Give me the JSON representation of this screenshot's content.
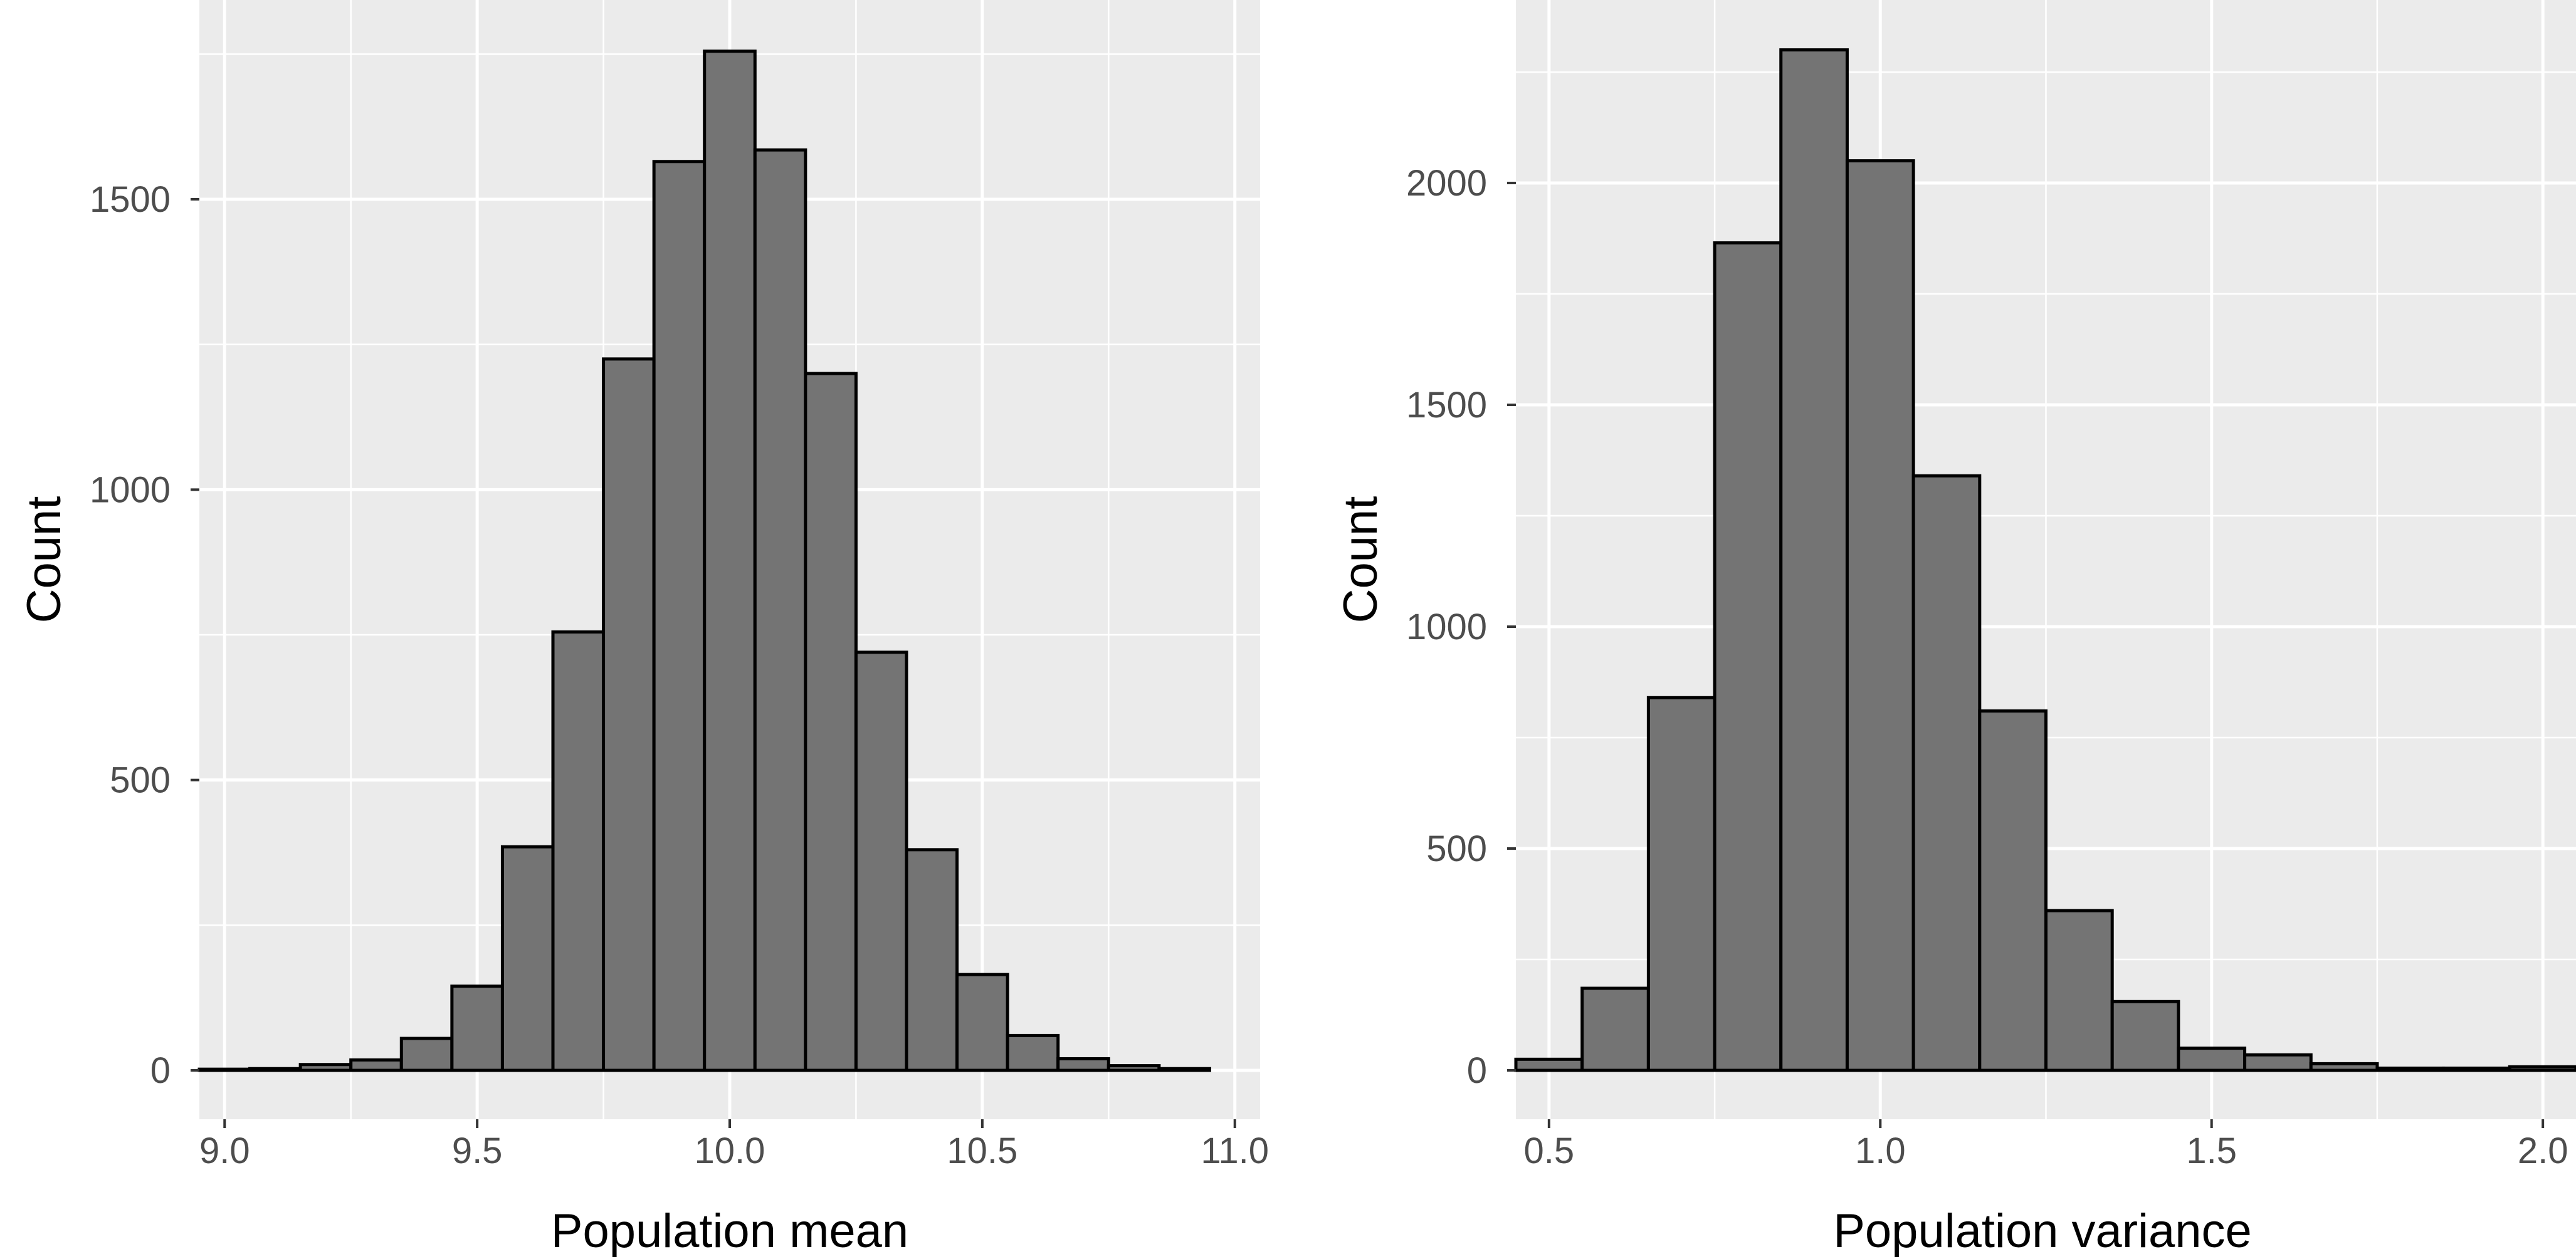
{
  "chart_data": [
    {
      "type": "bar",
      "title": "",
      "xlabel": "Population mean",
      "ylabel": "Count",
      "xlim": [
        8.95,
        11.05
      ],
      "ylim": [
        0,
        1750
      ],
      "x_ticks": [
        "9.0",
        "9.5",
        "10.0",
        "10.5",
        "11.0"
      ],
      "x_tick_values": [
        9.0,
        9.5,
        10.0,
        10.5,
        11.0
      ],
      "y_ticks": [
        "0",
        "500",
        "1000",
        "1500"
      ],
      "y_tick_values": [
        0,
        500,
        1000,
        1500
      ],
      "bin_width": 0.1,
      "bin_edges": [
        8.95,
        9.05,
        9.15,
        9.25,
        9.35,
        9.45,
        9.55,
        9.65,
        9.75,
        9.85,
        9.95,
        10.05,
        10.15,
        10.25,
        10.35,
        10.45,
        10.55,
        10.65,
        10.75,
        10.85,
        10.95
      ],
      "values": [
        2,
        3,
        10,
        18,
        55,
        145,
        385,
        755,
        1225,
        1565,
        1755,
        1585,
        1200,
        720,
        380,
        165,
        60,
        20,
        8,
        3
      ],
      "grid": true,
      "legend": "none",
      "bar_fill": "#747474",
      "bar_stroke": "#000000",
      "panel_bg": "#ebebeb",
      "grid_color": "#ffffff"
    },
    {
      "type": "bar",
      "title": "",
      "xlabel": "Population variance",
      "ylabel": "Count",
      "xlim": [
        0.45,
        2.05
      ],
      "ylim": [
        0,
        2300
      ],
      "x_ticks": [
        "0.5",
        "1.0",
        "1.5",
        "2.0"
      ],
      "x_tick_values": [
        0.5,
        1.0,
        1.5,
        2.0
      ],
      "y_ticks": [
        "0",
        "500",
        "1000",
        "1500",
        "2000"
      ],
      "y_tick_values": [
        0,
        500,
        1000,
        1500,
        2000
      ],
      "bin_width": 0.1,
      "bin_edges": [
        0.45,
        0.55,
        0.65,
        0.75,
        0.85,
        0.95,
        1.05,
        1.15,
        1.25,
        1.35,
        1.45,
        1.55,
        1.65,
        1.75,
        1.85,
        1.95,
        2.05
      ],
      "values": [
        25,
        185,
        840,
        1865,
        2300,
        2050,
        1340,
        810,
        360,
        155,
        50,
        35,
        15,
        5,
        5,
        8
      ],
      "grid": true,
      "legend": "none",
      "bar_fill": "#747474",
      "bar_stroke": "#000000",
      "panel_bg": "#ebebeb",
      "grid_color": "#ffffff"
    }
  ]
}
